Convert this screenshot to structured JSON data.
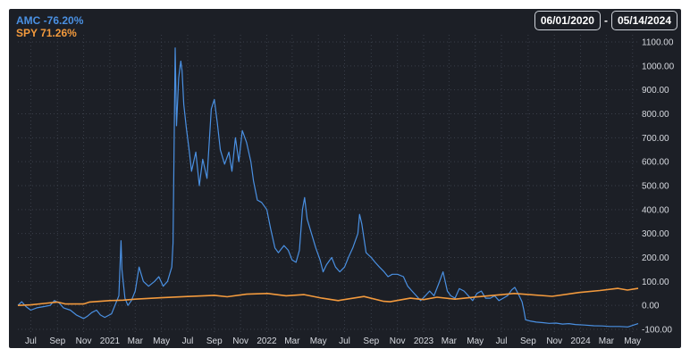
{
  "header": {
    "date_start": "06/01/2020",
    "date_separator": "-",
    "date_end": "05/14/2024"
  },
  "chart_data": {
    "type": "line",
    "xlim": [
      "2020-06-01",
      "2024-05-14"
    ],
    "ylim": [
      -100,
      1100
    ],
    "y_ticks": [
      "1100.00",
      "1000.00",
      "900.00",
      "800.00",
      "700.00",
      "600.00",
      "500.00",
      "400.00",
      "300.00",
      "200.00",
      "100.00",
      "0.00",
      "-100.00"
    ],
    "x_ticks": [
      {
        "label": "Jul",
        "date": "2020-07-01"
      },
      {
        "label": "Sep",
        "date": "2020-09-01"
      },
      {
        "label": "Nov",
        "date": "2020-11-01"
      },
      {
        "label": "2021",
        "date": "2021-01-01"
      },
      {
        "label": "Mar",
        "date": "2021-03-01"
      },
      {
        "label": "May",
        "date": "2021-05-01"
      },
      {
        "label": "Jul",
        "date": "2021-07-01"
      },
      {
        "label": "Sep",
        "date": "2021-09-01"
      },
      {
        "label": "Nov",
        "date": "2021-11-01"
      },
      {
        "label": "2022",
        "date": "2022-01-01"
      },
      {
        "label": "Mar",
        "date": "2022-03-01"
      },
      {
        "label": "May",
        "date": "2022-05-01"
      },
      {
        "label": "Jul",
        "date": "2022-07-01"
      },
      {
        "label": "Sep",
        "date": "2022-09-01"
      },
      {
        "label": "Nov",
        "date": "2022-11-01"
      },
      {
        "label": "2023",
        "date": "2023-01-01"
      },
      {
        "label": "Mar",
        "date": "2023-03-01"
      },
      {
        "label": "May",
        "date": "2023-05-01"
      },
      {
        "label": "Jul",
        "date": "2023-07-01"
      },
      {
        "label": "Sep",
        "date": "2023-09-01"
      },
      {
        "label": "Nov",
        "date": "2023-11-01"
      },
      {
        "label": "2024",
        "date": "2024-01-01"
      },
      {
        "label": "Mar",
        "date": "2024-03-01"
      },
      {
        "label": "May",
        "date": "2024-05-01"
      }
    ],
    "grid": true,
    "legend": "top-left",
    "series": [
      {
        "name": "AMC",
        "legend_text": "AMC -76.20%",
        "color": "#4a90e2",
        "points": [
          [
            "2020-06-01",
            0
          ],
          [
            "2020-06-10",
            15
          ],
          [
            "2020-06-20",
            -5
          ],
          [
            "2020-07-01",
            -20
          ],
          [
            "2020-07-15",
            -10
          ],
          [
            "2020-08-01",
            -5
          ],
          [
            "2020-08-15",
            0
          ],
          [
            "2020-08-25",
            20
          ],
          [
            "2020-09-05",
            10
          ],
          [
            "2020-09-15",
            -10
          ],
          [
            "2020-10-01",
            -20
          ],
          [
            "2020-10-15",
            -40
          ],
          [
            "2020-11-01",
            -55
          ],
          [
            "2020-11-10",
            -45
          ],
          [
            "2020-11-20",
            -30
          ],
          [
            "2020-12-01",
            -20
          ],
          [
            "2020-12-10",
            -40
          ],
          [
            "2020-12-20",
            -50
          ],
          [
            "2021-01-05",
            -35
          ],
          [
            "2021-01-15",
            10
          ],
          [
            "2021-01-22",
            40
          ],
          [
            "2021-01-27",
            270
          ],
          [
            "2021-01-29",
            150
          ],
          [
            "2021-02-05",
            30
          ],
          [
            "2021-02-12",
            0
          ],
          [
            "2021-02-20",
            20
          ],
          [
            "2021-03-01",
            60
          ],
          [
            "2021-03-10",
            160
          ],
          [
            "2021-03-20",
            100
          ],
          [
            "2021-04-01",
            80
          ],
          [
            "2021-04-15",
            100
          ],
          [
            "2021-04-25",
            120
          ],
          [
            "2021-05-05",
            80
          ],
          [
            "2021-05-15",
            100
          ],
          [
            "2021-05-25",
            160
          ],
          [
            "2021-05-28",
            260
          ],
          [
            "2021-06-02",
            1075
          ],
          [
            "2021-06-05",
            750
          ],
          [
            "2021-06-10",
            950
          ],
          [
            "2021-06-15",
            1020
          ],
          [
            "2021-06-18",
            980
          ],
          [
            "2021-06-22",
            840
          ],
          [
            "2021-06-28",
            740
          ],
          [
            "2021-07-05",
            640
          ],
          [
            "2021-07-10",
            560
          ],
          [
            "2021-07-20",
            640
          ],
          [
            "2021-07-28",
            500
          ],
          [
            "2021-08-05",
            610
          ],
          [
            "2021-08-15",
            530
          ],
          [
            "2021-08-25",
            820
          ],
          [
            "2021-09-01",
            860
          ],
          [
            "2021-09-08",
            760
          ],
          [
            "2021-09-15",
            650
          ],
          [
            "2021-09-25",
            590
          ],
          [
            "2021-10-05",
            640
          ],
          [
            "2021-10-12",
            560
          ],
          [
            "2021-10-20",
            700
          ],
          [
            "2021-10-28",
            600
          ],
          [
            "2021-11-05",
            730
          ],
          [
            "2021-11-15",
            680
          ],
          [
            "2021-11-25",
            600
          ],
          [
            "2021-12-01",
            520
          ],
          [
            "2021-12-10",
            440
          ],
          [
            "2021-12-20",
            430
          ],
          [
            "2022-01-01",
            400
          ],
          [
            "2022-01-10",
            320
          ],
          [
            "2022-01-20",
            240
          ],
          [
            "2022-01-28",
            220
          ],
          [
            "2022-02-10",
            250
          ],
          [
            "2022-02-20",
            230
          ],
          [
            "2022-03-01",
            190
          ],
          [
            "2022-03-10",
            180
          ],
          [
            "2022-03-18",
            230
          ],
          [
            "2022-03-25",
            400
          ],
          [
            "2022-03-30",
            450
          ],
          [
            "2022-04-05",
            360
          ],
          [
            "2022-04-15",
            300
          ],
          [
            "2022-04-25",
            240
          ],
          [
            "2022-05-05",
            190
          ],
          [
            "2022-05-12",
            140
          ],
          [
            "2022-05-20",
            170
          ],
          [
            "2022-06-01",
            200
          ],
          [
            "2022-06-10",
            160
          ],
          [
            "2022-06-20",
            140
          ],
          [
            "2022-07-01",
            160
          ],
          [
            "2022-07-10",
            200
          ],
          [
            "2022-07-20",
            240
          ],
          [
            "2022-08-01",
            300
          ],
          [
            "2022-08-05",
            380
          ],
          [
            "2022-08-10",
            340
          ],
          [
            "2022-08-20",
            220
          ],
          [
            "2022-09-01",
            200
          ],
          [
            "2022-09-10",
            180
          ],
          [
            "2022-09-20",
            160
          ],
          [
            "2022-10-01",
            140
          ],
          [
            "2022-10-10",
            120
          ],
          [
            "2022-10-20",
            130
          ],
          [
            "2022-11-01",
            130
          ],
          [
            "2022-11-15",
            120
          ],
          [
            "2022-11-25",
            80
          ],
          [
            "2022-12-05",
            60
          ],
          [
            "2022-12-15",
            40
          ],
          [
            "2022-12-25",
            20
          ],
          [
            "2023-01-05",
            40
          ],
          [
            "2023-01-15",
            60
          ],
          [
            "2023-01-25",
            40
          ],
          [
            "2023-02-05",
            90
          ],
          [
            "2023-02-15",
            140
          ],
          [
            "2023-02-25",
            60
          ],
          [
            "2023-03-05",
            40
          ],
          [
            "2023-03-15",
            30
          ],
          [
            "2023-03-25",
            70
          ],
          [
            "2023-04-05",
            60
          ],
          [
            "2023-04-15",
            40
          ],
          [
            "2023-04-25",
            20
          ],
          [
            "2023-05-05",
            50
          ],
          [
            "2023-05-15",
            60
          ],
          [
            "2023-05-25",
            30
          ],
          [
            "2023-06-05",
            30
          ],
          [
            "2023-06-15",
            40
          ],
          [
            "2023-06-25",
            20
          ],
          [
            "2023-07-05",
            30
          ],
          [
            "2023-07-15",
            40
          ],
          [
            "2023-07-25",
            65
          ],
          [
            "2023-08-01",
            75
          ],
          [
            "2023-08-10",
            45
          ],
          [
            "2023-08-18",
            15
          ],
          [
            "2023-08-22",
            -20
          ],
          [
            "2023-08-26",
            -60
          ],
          [
            "2023-09-05",
            -65
          ],
          [
            "2023-09-20",
            -70
          ],
          [
            "2023-10-05",
            -72
          ],
          [
            "2023-10-20",
            -75
          ],
          [
            "2023-11-05",
            -74
          ],
          [
            "2023-11-20",
            -78
          ],
          [
            "2023-12-05",
            -76
          ],
          [
            "2023-12-20",
            -80
          ],
          [
            "2024-01-10",
            -82
          ],
          [
            "2024-02-01",
            -85
          ],
          [
            "2024-02-20",
            -86
          ],
          [
            "2024-03-10",
            -88
          ],
          [
            "2024-04-01",
            -88
          ],
          [
            "2024-04-20",
            -90
          ],
          [
            "2024-05-14",
            -76
          ]
        ]
      },
      {
        "name": "SPY",
        "legend_text": "SPY 71.26%",
        "color": "#f39a3d",
        "points": [
          [
            "2020-06-01",
            0
          ],
          [
            "2020-07-01",
            2
          ],
          [
            "2020-08-01",
            8
          ],
          [
            "2020-09-01",
            14
          ],
          [
            "2020-09-20",
            6
          ],
          [
            "2020-11-01",
            6
          ],
          [
            "2020-11-15",
            14
          ],
          [
            "2020-12-31",
            20
          ],
          [
            "2021-02-01",
            22
          ],
          [
            "2021-03-01",
            26
          ],
          [
            "2021-05-01",
            32
          ],
          [
            "2021-07-01",
            37
          ],
          [
            "2021-09-01",
            42
          ],
          [
            "2021-10-01",
            36
          ],
          [
            "2021-11-15",
            47
          ],
          [
            "2022-01-03",
            50
          ],
          [
            "2022-02-15",
            40
          ],
          [
            "2022-03-29",
            45
          ],
          [
            "2022-05-10",
            30
          ],
          [
            "2022-06-16",
            20
          ],
          [
            "2022-08-15",
            37
          ],
          [
            "2022-09-30",
            17
          ],
          [
            "2022-10-15",
            15
          ],
          [
            "2022-12-01",
            30
          ],
          [
            "2023-01-01",
            24
          ],
          [
            "2023-02-01",
            34
          ],
          [
            "2023-03-15",
            26
          ],
          [
            "2023-05-01",
            35
          ],
          [
            "2023-07-31",
            50
          ],
          [
            "2023-10-27",
            38
          ],
          [
            "2023-12-29",
            54
          ],
          [
            "2024-02-15",
            62
          ],
          [
            "2024-03-28",
            71
          ],
          [
            "2024-04-19",
            64
          ],
          [
            "2024-05-14",
            71
          ]
        ]
      }
    ]
  }
}
